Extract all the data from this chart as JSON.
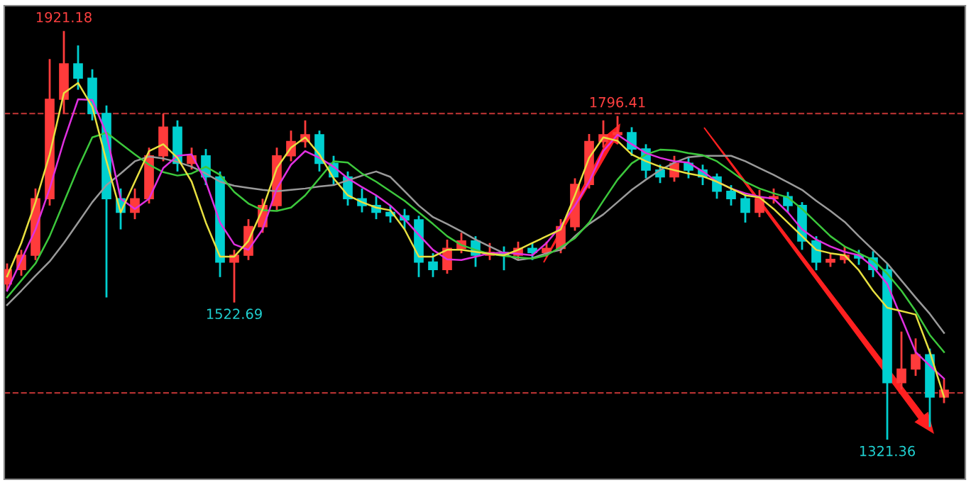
{
  "chart_data": {
    "type": "candlestick",
    "categories": [
      null,
      null,
      null,
      null,
      null,
      null,
      null,
      null,
      null,
      null,
      null,
      null,
      null,
      null,
      null,
      null,
      null,
      null,
      null,
      null,
      null,
      null,
      null,
      null,
      null,
      null,
      null,
      null,
      null,
      null,
      null,
      null,
      null,
      null,
      null,
      null,
      null,
      null,
      null,
      null,
      null,
      null,
      null,
      null,
      null,
      null,
      null,
      null,
      null,
      null,
      null,
      null,
      null,
      null,
      null,
      null,
      null,
      null,
      null,
      null,
      null,
      null,
      null,
      null,
      null,
      null,
      null
    ],
    "ohlc": [
      [
        1550,
        1580,
        1540,
        1571
      ],
      [
        1571,
        1600,
        1562,
        1592
      ],
      [
        1592,
        1690,
        1585,
        1675
      ],
      [
        1675,
        1880,
        1665,
        1821
      ],
      [
        1821,
        1921.18,
        1800,
        1873
      ],
      [
        1873,
        1900,
        1835,
        1852
      ],
      [
        1852,
        1865,
        1790,
        1800
      ],
      [
        1800,
        1812,
        1530,
        1675
      ],
      [
        1675,
        1690,
        1630,
        1655
      ],
      [
        1655,
        1690,
        1645,
        1675
      ],
      [
        1675,
        1750,
        1668,
        1738
      ],
      [
        1738,
        1800,
        1730,
        1780
      ],
      [
        1780,
        1790,
        1715,
        1727
      ],
      [
        1727,
        1750,
        1718,
        1738
      ],
      [
        1738,
        1748,
        1695,
        1707
      ],
      [
        1707,
        1715,
        1560,
        1582
      ],
      [
        1582,
        1600,
        1522.69,
        1592
      ],
      [
        1592,
        1645,
        1585,
        1634
      ],
      [
        1634,
        1675,
        1625,
        1665
      ],
      [
        1665,
        1750,
        1658,
        1738
      ],
      [
        1738,
        1775,
        1730,
        1759
      ],
      [
        1759,
        1790,
        1750,
        1769
      ],
      [
        1769,
        1775,
        1715,
        1727
      ],
      [
        1727,
        1738,
        1695,
        1707
      ],
      [
        1707,
        1715,
        1665,
        1675
      ],
      [
        1675,
        1690,
        1655,
        1665
      ],
      [
        1665,
        1680,
        1645,
        1655
      ],
      [
        1655,
        1665,
        1640,
        1650
      ],
      [
        1650,
        1660,
        1630,
        1644
      ],
      [
        1644,
        1650,
        1560,
        1582
      ],
      [
        1582,
        1595,
        1560,
        1571
      ],
      [
        1571,
        1615,
        1565,
        1602
      ],
      [
        1602,
        1625,
        1595,
        1613
      ],
      [
        1613,
        1620,
        1575,
        1592
      ],
      [
        1592,
        1610,
        1585,
        1596
      ],
      [
        1596,
        1605,
        1570,
        1592
      ],
      [
        1592,
        1612,
        1585,
        1602
      ],
      [
        1602,
        1610,
        1585,
        1596
      ],
      [
        1596,
        1612,
        1590,
        1602
      ],
      [
        1602,
        1645,
        1595,
        1634
      ],
      [
        1634,
        1705,
        1628,
        1696
      ],
      [
        1696,
        1770,
        1690,
        1759
      ],
      [
        1759,
        1790,
        1750,
        1769
      ],
      [
        1769,
        1796.41,
        1755,
        1772
      ],
      [
        1772,
        1780,
        1738,
        1748
      ],
      [
        1748,
        1755,
        1705,
        1717
      ],
      [
        1717,
        1725,
        1698,
        1707
      ],
      [
        1707,
        1738,
        1700,
        1727
      ],
      [
        1727,
        1735,
        1705,
        1717
      ],
      [
        1717,
        1725,
        1695,
        1707
      ],
      [
        1707,
        1712,
        1675,
        1686
      ],
      [
        1686,
        1695,
        1665,
        1675
      ],
      [
        1675,
        1682,
        1640,
        1655
      ],
      [
        1655,
        1688,
        1648,
        1675
      ],
      [
        1675,
        1690,
        1668,
        1678
      ],
      [
        1678,
        1685,
        1655,
        1665
      ],
      [
        1665,
        1670,
        1600,
        1613
      ],
      [
        1613,
        1620,
        1570,
        1582
      ],
      [
        1582,
        1595,
        1575,
        1586
      ],
      [
        1586,
        1605,
        1580,
        1592
      ],
      [
        1592,
        1600,
        1578,
        1588
      ],
      [
        1588,
        1598,
        1560,
        1571
      ],
      [
        1571,
        1580,
        1321.36,
        1405
      ],
      [
        1405,
        1480,
        1395,
        1425
      ],
      [
        1425,
        1470,
        1415,
        1446
      ],
      [
        1446,
        1455,
        1340,
        1384
      ],
      [
        1384,
        1410,
        1375,
        1394
      ]
    ],
    "colors": [
      "#ff3b3b",
      "#ff3b3b",
      "#ff3b3b",
      "#ff3b3b",
      "#ff3b3b",
      "#00d0d0",
      "#00d0d0",
      "#00d0d0",
      "#00d0d0",
      "#ff3b3b",
      "#ff3b3b",
      "#ff3b3b",
      "#00d0d0",
      "#ff3b3b",
      "#00d0d0",
      "#00d0d0",
      "#ff3b3b",
      "#ff3b3b",
      "#ff3b3b",
      "#ff3b3b",
      "#ff3b3b",
      "#ff3b3b",
      "#00d0d0",
      "#00d0d0",
      "#00d0d0",
      "#00d0d0",
      "#00d0d0",
      "#00d0d0",
      "#00d0d0",
      "#00d0d0",
      "#00d0d0",
      "#ff3b3b",
      "#ff3b3b",
      "#00d0d0",
      "#ff3b3b",
      "#00d0d0",
      "#ff3b3b",
      "#00d0d0",
      "#ff3b3b",
      "#ff3b3b",
      "#ff3b3b",
      "#ff3b3b",
      "#ff3b3b",
      "#ff3b3b",
      "#00d0d0",
      "#00d0d0",
      "#00d0d0",
      "#ff3b3b",
      "#00d0d0",
      "#00d0d0",
      "#00d0d0",
      "#00d0d0",
      "#00d0d0",
      "#ff3b3b",
      "#ff3b3b",
      "#00d0d0",
      "#00d0d0",
      "#00d0d0",
      "#ff3b3b",
      "#ff3b3b",
      "#00d0d0",
      "#00d0d0",
      "#00d0d0",
      "#ff3b3b",
      "#ff3b3b",
      "#00d0d0",
      "#ff3b3b"
    ],
    "series": [
      {
        "type": "line",
        "color": "#9a9a9a",
        "values": [
          1519,
          1540,
          1562,
          1583,
          1610,
          1640,
          1670,
          1695,
          1712,
          1730,
          1737,
          1734,
          1729,
          1722,
          1712,
          1700,
          1694,
          1691,
          1688,
          1686,
          1688,
          1690,
          1693,
          1695,
          1702,
          1709,
          1715,
          1707,
          1686,
          1665,
          1648,
          1638,
          1627,
          1615,
          1605,
          1595,
          1585,
          1588,
          1595,
          1600,
          1620,
          1638,
          1652,
          1670,
          1688,
          1703,
          1717,
          1728,
          1736,
          1738,
          1738,
          1738,
          1730,
          1720,
          1710,
          1699,
          1688,
          1672,
          1657,
          1641,
          1620,
          1600,
          1580,
          1555,
          1530,
          1506,
          1478
        ]
      },
      {
        "type": "line",
        "color": "#3cc83c",
        "values": [
          1530,
          1555,
          1580,
          1620,
          1670,
          1720,
          1765,
          1772,
          1756,
          1740,
          1725,
          1714,
          1709,
          1712,
          1722,
          1710,
          1685,
          1668,
          1658,
          1657,
          1662,
          1680,
          1705,
          1730,
          1728,
          1712,
          1700,
          1686,
          1672,
          1655,
          1638,
          1620,
          1607,
          1600,
          1594,
          1591,
          1589,
          1587,
          1592,
          1604,
          1617,
          1640,
          1672,
          1703,
          1727,
          1740,
          1747,
          1746,
          1742,
          1739,
          1730,
          1715,
          1700,
          1690,
          1683,
          1677,
          1660,
          1640,
          1620,
          1605,
          1595,
          1585,
          1565,
          1540,
          1510,
          1475,
          1450
        ]
      },
      {
        "type": "line",
        "color": "#e030e0",
        "values": [
          1540,
          1585,
          1630,
          1690,
          1760,
          1821,
          1820,
          1770,
          1675,
          1660,
          1675,
          1720,
          1738,
          1740,
          1700,
          1640,
          1608,
          1600,
          1630,
          1690,
          1725,
          1745,
          1735,
          1722,
          1705,
          1692,
          1680,
          1665,
          1645,
          1622,
          1600,
          1586,
          1585,
          1590,
          1595,
          1596,
          1594,
          1592,
          1610,
          1635,
          1665,
          1700,
          1745,
          1769,
          1755,
          1742,
          1735,
          1730,
          1728,
          1715,
          1700,
          1690,
          1683,
          1678,
          1675,
          1655,
          1630,
          1615,
          1605,
          1597,
          1592,
          1575,
          1550,
          1500,
          1450,
          1430,
          1411
        ]
      },
      {
        "type": "line",
        "color": "#e8e040",
        "values": [
          1561,
          1610,
          1670,
          1740,
          1830,
          1845,
          1810,
          1730,
          1655,
          1700,
          1745,
          1755,
          1735,
          1700,
          1640,
          1590,
          1590,
          1613,
          1660,
          1720,
          1750,
          1765,
          1740,
          1705,
          1680,
          1670,
          1662,
          1658,
          1630,
          1590,
          1590,
          1600,
          1600,
          1597,
          1594,
          1592,
          1600,
          1610,
          1620,
          1630,
          1680,
          1735,
          1765,
          1760,
          1740,
          1730,
          1722,
          1717,
          1712,
          1708,
          1700,
          1690,
          1680,
          1677,
          1660,
          1640,
          1620,
          1600,
          1595,
          1592,
          1570,
          1540,
          1515,
          1510,
          1505,
          1450,
          1384
        ]
      }
    ],
    "ref_lines": [
      {
        "axis": "y",
        "value": 1800,
        "color": "#b03030",
        "line_style": "dashed"
      },
      {
        "axis": "y",
        "value": 1390,
        "color": "#b03030",
        "line_style": "dashed"
      }
    ],
    "annotations": [
      {
        "text": "1921.18",
        "y": 1921.18
      },
      {
        "text": "1796.41",
        "y": 1796.41
      },
      {
        "text": "1522.69",
        "y": 1522.69
      },
      {
        "text": "1321.36",
        "y": 1321.36
      }
    ]
  }
}
